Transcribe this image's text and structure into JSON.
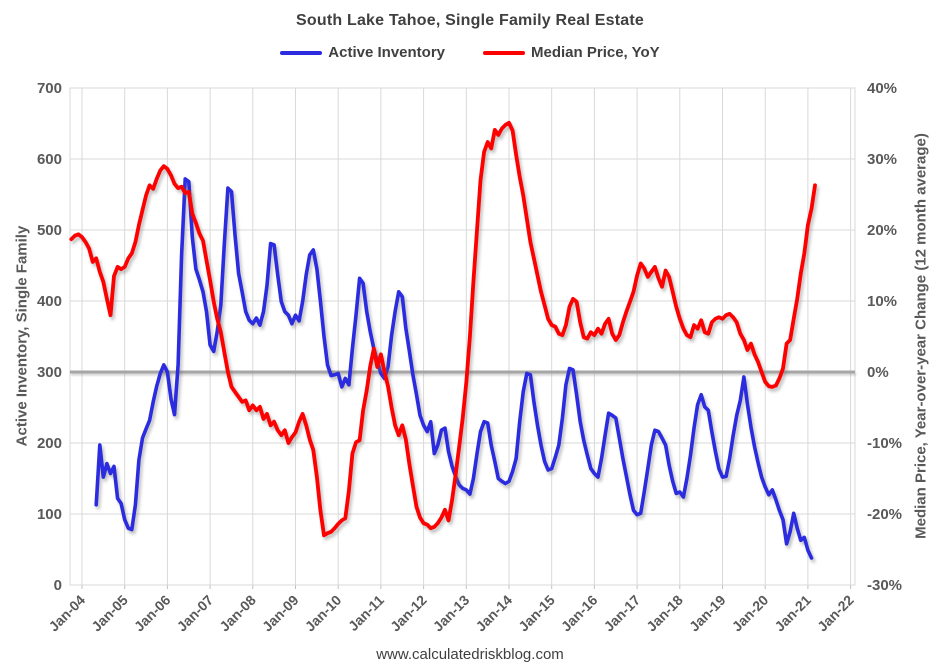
{
  "header": {
    "title": "South Lake Tahoe, Single Family Real Estate"
  },
  "legend": [
    {
      "label": "Active Inventory",
      "color": "#2b2be0"
    },
    {
      "label": "Median Price, YoY",
      "color": "#ff0000"
    }
  ],
  "footer": {
    "url": "www.calculatedriskblog.com"
  },
  "style": {
    "grid_color": "#d9d9d9",
    "zero_line_color": "#a6a6a6",
    "tick_label_color": "#595959",
    "blue": "#2b2be0",
    "red": "#ff0000"
  },
  "chart_data": {
    "type": "line",
    "title": "South Lake Tahoe, Single Family Real Estate",
    "grid": true,
    "legend_position": "top",
    "x_start_month": "2003-10",
    "months_per_point": 1,
    "x_tick_labels": [
      "Jan-04",
      "Jan-05",
      "Jan-06",
      "Jan-07",
      "Jan-08",
      "Jan-09",
      "Jan-10",
      "Jan-11",
      "Jan-12",
      "Jan-13",
      "Jan-14",
      "Jan-15",
      "Jan-16",
      "Jan-17",
      "Jan-18",
      "Jan-19",
      "Jan-20",
      "Jan-21",
      "Jan-22"
    ],
    "left_axis": {
      "label": "Active Inventory, Single Family",
      "min": 0,
      "max": 700,
      "ticks": [
        "700",
        "600",
        "500",
        "400",
        "300",
        "200",
        "100",
        "0"
      ]
    },
    "right_axis": {
      "label": "Median Price, Year-over-year Change (12 month average)",
      "min": -30,
      "max": 40,
      "ticks": [
        "40%",
        "30%",
        "20%",
        "10%",
        "0%",
        "-10%",
        "-20%",
        "-30%"
      ]
    },
    "zero_line": {
      "left_value": 300,
      "right_label": "0%"
    },
    "series": [
      {
        "name": "Active Inventory",
        "axis": "left",
        "color": "#2b2be0",
        "width": 3.6,
        "values": [
          null,
          null,
          null,
          null,
          null,
          null,
          null,
          113,
          197,
          152,
          171,
          157,
          167,
          122,
          115,
          92,
          80,
          78,
          113,
          176,
          207,
          220,
          232,
          258,
          280,
          298,
          310,
          300,
          262,
          240,
          310,
          465,
          572,
          568,
          490,
          445,
          430,
          413,
          385,
          338,
          329,
          357,
          394,
          480,
          559,
          554,
          493,
          439,
          413,
          385,
          373,
          368,
          376,
          366,
          385,
          422,
          481,
          479,
          437,
          399,
          385,
          380,
          368,
          380,
          372,
          399,
          437,
          465,
          472,
          445,
          400,
          350,
          310,
          295,
          296,
          298,
          279,
          291,
          282,
          333,
          380,
          432,
          425,
          385,
          357,
          333,
          315,
          298,
          291,
          307,
          352,
          385,
          413,
          406,
          362,
          329,
          296,
          268,
          239,
          225,
          216,
          230,
          185,
          197,
          218,
          221,
          188,
          167,
          153,
          141,
          136,
          134,
          128,
          150,
          185,
          216,
          230,
          228,
          197,
          174,
          150,
          146,
          143,
          146,
          160,
          178,
          230,
          272,
          298,
          296,
          258,
          225,
          197,
          174,
          162,
          164,
          180,
          197,
          235,
          282,
          305,
          303,
          268,
          230,
          204,
          183,
          164,
          157,
          152,
          178,
          211,
          242,
          239,
          235,
          207,
          178,
          153,
          127,
          105,
          99,
          101,
          131,
          164,
          197,
          218,
          216,
          207,
          197,
          169,
          146,
          129,
          131,
          124,
          150,
          183,
          221,
          254,
          268,
          251,
          246,
          216,
          188,
          164,
          152,
          153,
          178,
          211,
          239,
          260,
          293,
          255,
          222,
          195,
          172,
          152,
          138,
          127,
          134,
          120,
          105,
          92,
          58,
          75,
          101,
          80,
          63,
          67,
          49,
          38,
          null
        ]
      },
      {
        "name": "Median Price, YoY",
        "axis": "right",
        "color": "#ff0000",
        "width": 3.8,
        "values": [
          18.7,
          19.2,
          19.4,
          19.0,
          18.3,
          17.4,
          15.5,
          16.0,
          14.1,
          12.7,
          10.3,
          8.0,
          13.5,
          14.8,
          14.5,
          14.8,
          16.0,
          16.7,
          18.3,
          20.7,
          22.8,
          24.9,
          26.3,
          25.8,
          27.2,
          28.4,
          29.0,
          28.6,
          27.7,
          26.5,
          25.9,
          26.1,
          25.2,
          25.4,
          22.3,
          21.0,
          19.5,
          18.5,
          15.7,
          12.9,
          9.9,
          7.5,
          5.6,
          2.8,
          0.0,
          -2.1,
          -2.8,
          -3.5,
          -4.2,
          -4.0,
          -5.4,
          -4.7,
          -5.4,
          -4.9,
          -6.6,
          -5.9,
          -7.5,
          -7.0,
          -8.2,
          -8.9,
          -8.2,
          -10.0,
          -9.2,
          -8.5,
          -7.0,
          -5.9,
          -7.5,
          -9.5,
          -11.0,
          -14.8,
          -19.5,
          -23.0,
          -22.7,
          -22.5,
          -22.0,
          -21.4,
          -20.9,
          -20.6,
          -16.7,
          -11.5,
          -9.9,
          -9.6,
          -5.4,
          -2.6,
          0.8,
          3.3,
          0.7,
          2.5,
          0.0,
          -2.0,
          -5.0,
          -7.5,
          -8.9,
          -7.5,
          -9.5,
          -13.0,
          -16.0,
          -19.0,
          -20.5,
          -21.3,
          -21.5,
          -22.0,
          -21.8,
          -21.3,
          -20.5,
          -19.4,
          -20.9,
          -18.0,
          -14.5,
          -10.5,
          -6.5,
          -1.5,
          5.0,
          12.7,
          20.0,
          27.0,
          31.0,
          32.4,
          31.5,
          34.1,
          33.4,
          34.3,
          34.8,
          35.1,
          34.0,
          30.6,
          27.5,
          24.9,
          21.6,
          18.3,
          16.0,
          13.6,
          11.3,
          9.4,
          7.5,
          6.6,
          6.4,
          5.4,
          5.2,
          6.6,
          9.2,
          10.3,
          9.9,
          7.0,
          4.9,
          4.7,
          5.6,
          5.2,
          6.1,
          5.4,
          6.8,
          7.5,
          5.4,
          4.5,
          5.2,
          7.0,
          8.5,
          9.9,
          11.3,
          13.6,
          15.3,
          14.6,
          13.4,
          14.1,
          14.8,
          13.2,
          12.0,
          14.3,
          13.4,
          11.3,
          9.2,
          7.5,
          6.1,
          5.2,
          4.9,
          6.6,
          6.1,
          7.3,
          5.6,
          5.4,
          7.0,
          7.5,
          7.7,
          7.5,
          8.0,
          8.2,
          7.7,
          7.0,
          5.4,
          4.5,
          3.1,
          4.0,
          2.5,
          1.4,
          0.0,
          -1.4,
          -2.0,
          -2.1,
          -1.9,
          -0.9,
          0.5,
          4.0,
          4.5,
          7.5,
          10.3,
          13.9,
          16.7,
          20.7,
          23.0,
          26.3
        ]
      }
    ]
  }
}
